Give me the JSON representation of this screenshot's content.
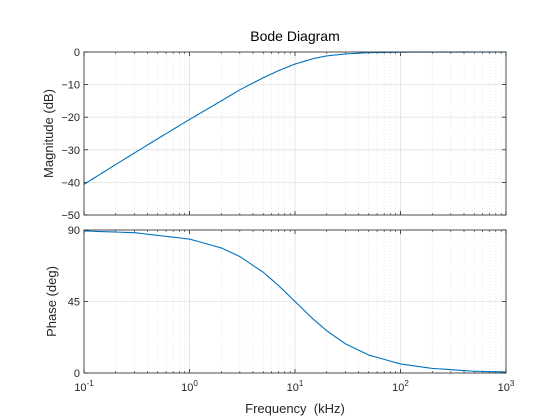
{
  "chart_data": {
    "type": "line",
    "title": "Bode Diagram",
    "xlabel": "Frequency  (kHz)",
    "x_scale": "log",
    "xlim": [
      0.1,
      1000
    ],
    "x_tick_labels": [
      "10",
      "10",
      "10",
      "10",
      "10"
    ],
    "x_tick_exponents": [
      "-1",
      "0",
      "1",
      "2",
      "3"
    ],
    "grid": true,
    "line_color": "#0072BD",
    "panels": [
      {
        "name": "magnitude",
        "ylabel": "Magnitude (dB)",
        "ylim": [
          -50,
          0
        ],
        "yticks": [
          0,
          -10,
          -20,
          -30,
          -40,
          -50
        ],
        "ytick_labels": [
          "0",
          "−10",
          "−20",
          "−30",
          "−40",
          "−50"
        ],
        "x": [
          0.1,
          0.2,
          0.5,
          1,
          2,
          3,
          5,
          7,
          10,
          15,
          20,
          30,
          50,
          100,
          200,
          1000
        ],
        "y": [
          -40.6,
          -34.5,
          -26.6,
          -20.7,
          -15.0,
          -11.6,
          -7.9,
          -5.7,
          -3.7,
          -2.0,
          -1.2,
          -0.6,
          -0.2,
          -0.05,
          -0.01,
          0
        ]
      },
      {
        "name": "phase",
        "ylabel": "Phase (deg)",
        "ylim": [
          0,
          90
        ],
        "yticks": [
          0,
          45,
          90
        ],
        "ytick_labels": [
          "0",
          "45",
          "90"
        ],
        "x": [
          0.1,
          0.3,
          1,
          2,
          3,
          5,
          7,
          10,
          15,
          20,
          30,
          50,
          100,
          200,
          500,
          1000
        ],
        "y": [
          89.4,
          88.3,
          84.3,
          78.7,
          73.3,
          63.4,
          55.0,
          45.0,
          33.7,
          26.6,
          18.4,
          11.3,
          5.7,
          2.9,
          1.1,
          0.6
        ]
      }
    ]
  }
}
